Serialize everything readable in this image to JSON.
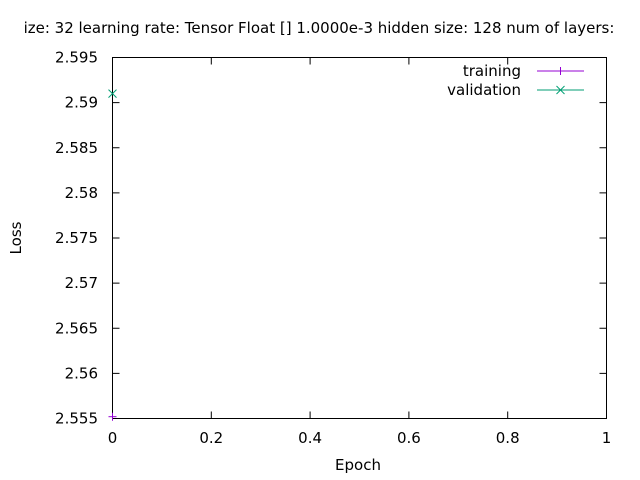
{
  "chart_data": {
    "type": "line",
    "title": "ize: 32 learning rate: Tensor Float []  1.0000e-3 hidden size: 128 num of layers:",
    "xlabel": "Epoch",
    "ylabel": "Loss",
    "xlim": [
      0,
      1
    ],
    "ylim": [
      2.555,
      2.595
    ],
    "xticks": [
      "0",
      "0.2",
      "0.4",
      "0.6",
      "0.8",
      "1"
    ],
    "yticks": [
      "2.555",
      "2.56",
      "2.565",
      "2.57",
      "2.575",
      "2.58",
      "2.585",
      "2.59",
      "2.595"
    ],
    "grid": false,
    "legend_position": "top-right",
    "series": [
      {
        "name": "training",
        "color": "#9400d3",
        "marker": "plus",
        "x": [
          0
        ],
        "y": [
          2.5552
        ]
      },
      {
        "name": "validation",
        "color": "#009e73",
        "marker": "cross",
        "x": [
          0
        ],
        "y": [
          2.591
        ]
      }
    ]
  }
}
